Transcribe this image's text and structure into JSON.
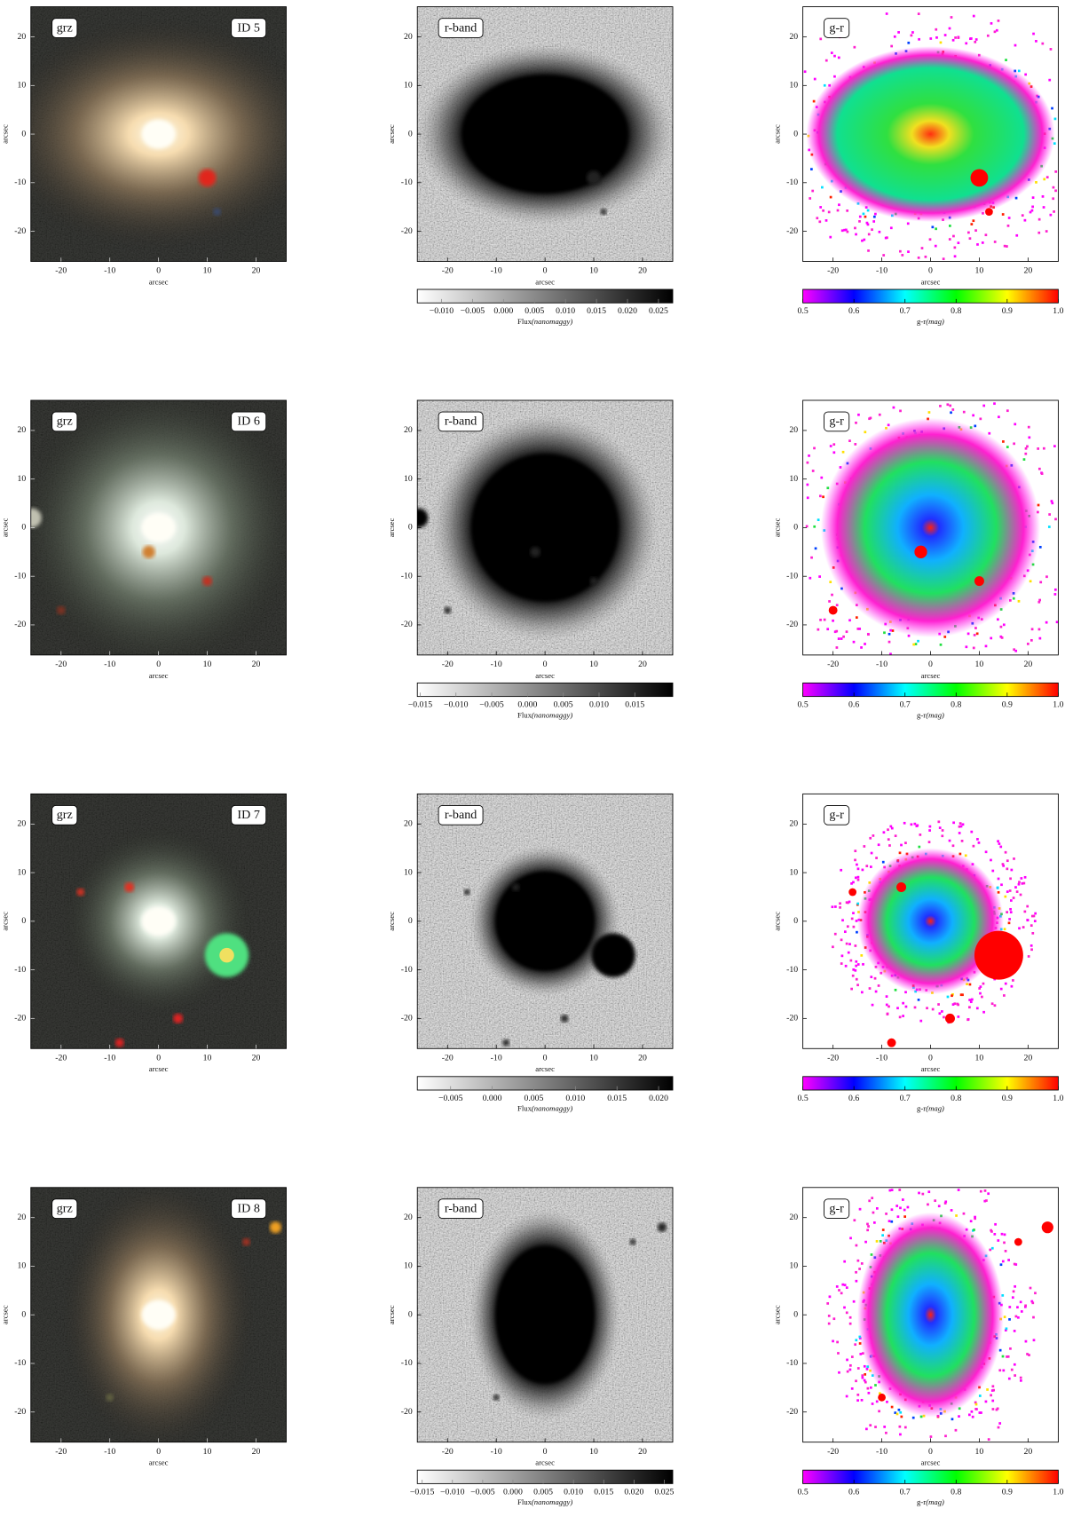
{
  "panel_titles": {
    "rgb": "grz",
    "r": "r-band",
    "gr": "g-r"
  },
  "axis": {
    "label": "arcsec",
    "lim": [
      -26.2,
      26.2
    ],
    "ticks": [
      -20,
      -10,
      0,
      10,
      20
    ]
  },
  "colorbars": {
    "r": {
      "name": "Flux",
      "unit": "(nanomaggy)"
    },
    "gr": {
      "name": "g-r",
      "unit": "(mag)",
      "lim": [
        0.5,
        1.0
      ],
      "ticks": [
        0.5,
        0.6,
        0.7,
        0.8,
        0.9,
        {
          "value": 1.0,
          "label": "1.0"
        }
      ]
    }
  },
  "rows": [
    {
      "id": "ID 5",
      "r_lim": [
        -0.0139,
        0.0273
      ],
      "r_ticks": [
        {
          "value": -0.01,
          "label": "−0.010"
        },
        {
          "value": -0.005,
          "label": "−0.005"
        },
        {
          "value": 0,
          "label": "0.000"
        },
        {
          "value": 0.005,
          "label": "0.005"
        },
        {
          "value": 0.01,
          "label": "0.010"
        },
        {
          "value": 0.015,
          "label": "0.015"
        },
        {
          "value": 0.02,
          "label": "0.020"
        },
        {
          "value": 0.025,
          "label": "0.025"
        }
      ]
    },
    {
      "id": "ID 6",
      "r_lim": [
        -0.0154,
        0.0203
      ],
      "r_ticks": [
        {
          "value": -0.015,
          "label": "−0.015"
        },
        {
          "value": -0.01,
          "label": "−0.010"
        },
        {
          "value": -0.005,
          "label": "−0.005"
        },
        {
          "value": 0,
          "label": "0.000"
        },
        {
          "value": 0.005,
          "label": "0.005"
        },
        {
          "value": 0.01,
          "label": "0.010"
        },
        {
          "value": 0.015,
          "label": "0.015"
        }
      ]
    },
    {
      "id": "ID 7",
      "r_lim": [
        -0.009,
        0.0217
      ],
      "r_ticks": [
        {
          "value": -0.005,
          "label": "−0.005"
        },
        {
          "value": 0,
          "label": "0.000"
        },
        {
          "value": 0.005,
          "label": "0.005"
        },
        {
          "value": 0.01,
          "label": "0.010"
        },
        {
          "value": 0.015,
          "label": "0.015"
        },
        {
          "value": 0.02,
          "label": "0.020"
        }
      ]
    },
    {
      "id": "ID 8",
      "r_lim": [
        -0.0158,
        0.0264
      ],
      "r_ticks": [
        {
          "value": -0.015,
          "label": "−0.015"
        },
        {
          "value": -0.01,
          "label": "−0.010"
        },
        {
          "value": -0.005,
          "label": "−0.005"
        },
        {
          "value": 0,
          "label": "0.000"
        },
        {
          "value": 0.005,
          "label": "0.005"
        },
        {
          "value": 0.01,
          "label": "0.010"
        },
        {
          "value": 0.015,
          "label": "0.015"
        },
        {
          "value": 0.02,
          "label": "0.020"
        },
        {
          "value": 0.025,
          "label": "0.025"
        }
      ]
    }
  ]
}
